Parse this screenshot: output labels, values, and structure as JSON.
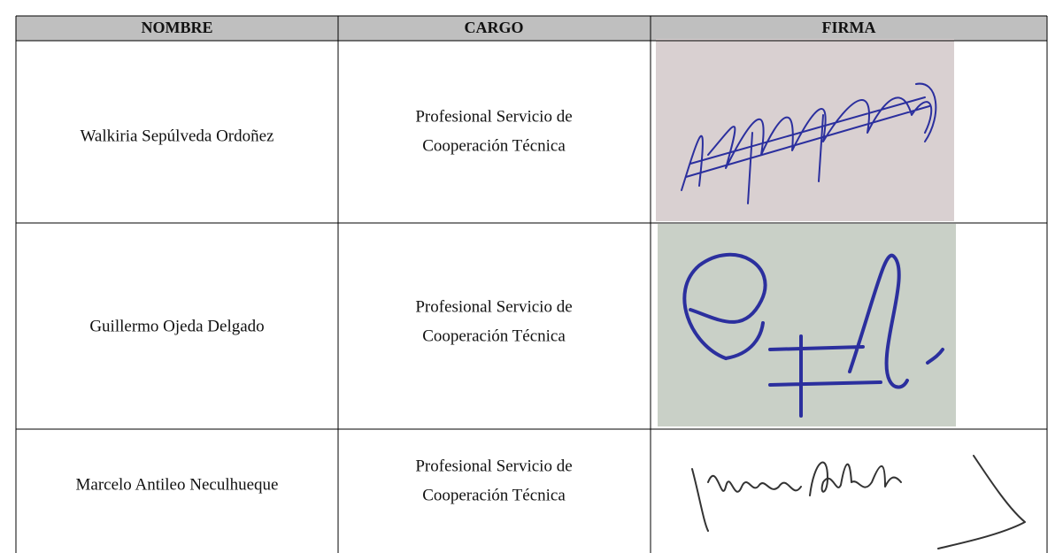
{
  "table": {
    "headers": [
      "NOMBRE",
      "CARGO",
      "FIRMA"
    ],
    "rows": [
      {
        "nombre": "Walkiria Sepúlveda Ordoñez",
        "cargo": [
          "Profesional Servicio de",
          "Cooperación Técnica"
        ]
      },
      {
        "nombre": "Guillermo Ojeda Delgado",
        "cargo": [
          "Profesional Servicio de",
          "Cooperación Técnica"
        ]
      },
      {
        "nombre": "Marcelo Antileo Neculhueque",
        "cargo": [
          "Profesional Servicio de",
          "Cooperación Técnica"
        ]
      }
    ]
  }
}
